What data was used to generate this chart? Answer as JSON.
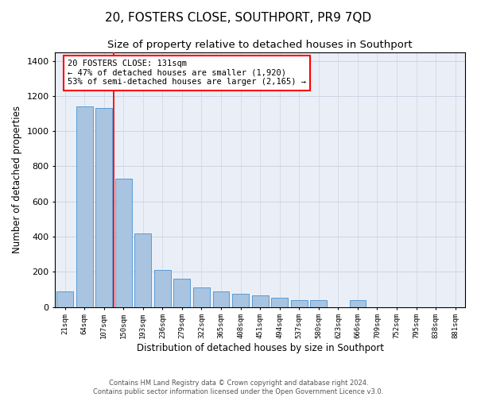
{
  "title": "20, FOSTERS CLOSE, SOUTHPORT, PR9 7QD",
  "subtitle": "Size of property relative to detached houses in Southport",
  "xlabel": "Distribution of detached houses by size in Southport",
  "ylabel": "Number of detached properties",
  "categories": [
    "21sqm",
    "64sqm",
    "107sqm",
    "150sqm",
    "193sqm",
    "236sqm",
    "279sqm",
    "322sqm",
    "365sqm",
    "408sqm",
    "451sqm",
    "494sqm",
    "537sqm",
    "580sqm",
    "623sqm",
    "666sqm",
    "709sqm",
    "752sqm",
    "795sqm",
    "838sqm",
    "881sqm"
  ],
  "values": [
    90,
    1140,
    1130,
    730,
    420,
    210,
    160,
    110,
    90,
    75,
    65,
    50,
    40,
    40,
    0,
    40,
    0,
    0,
    0,
    0,
    0
  ],
  "bar_color": "#a8c4e0",
  "bar_edge_color": "#5b9bd5",
  "bar_width": 0.85,
  "annotation_text": "20 FOSTERS CLOSE: 131sqm\n← 47% of detached houses are smaller (1,920)\n53% of semi-detached houses are larger (2,165) →",
  "annotation_box_color": "white",
  "annotation_box_edge_color": "red",
  "vline_color": "red",
  "vline_x_index": 2.5,
  "ylim": [
    0,
    1450
  ],
  "yticks": [
    0,
    200,
    400,
    600,
    800,
    1000,
    1200,
    1400
  ],
  "grid_color": "#cdd5e3",
  "background_color": "#eaeff7",
  "footer_line1": "Contains HM Land Registry data © Crown copyright and database right 2024.",
  "footer_line2": "Contains public sector information licensed under the Open Government Licence v3.0.",
  "title_fontsize": 11,
  "subtitle_fontsize": 9.5,
  "xlabel_fontsize": 8.5,
  "ylabel_fontsize": 8.5
}
